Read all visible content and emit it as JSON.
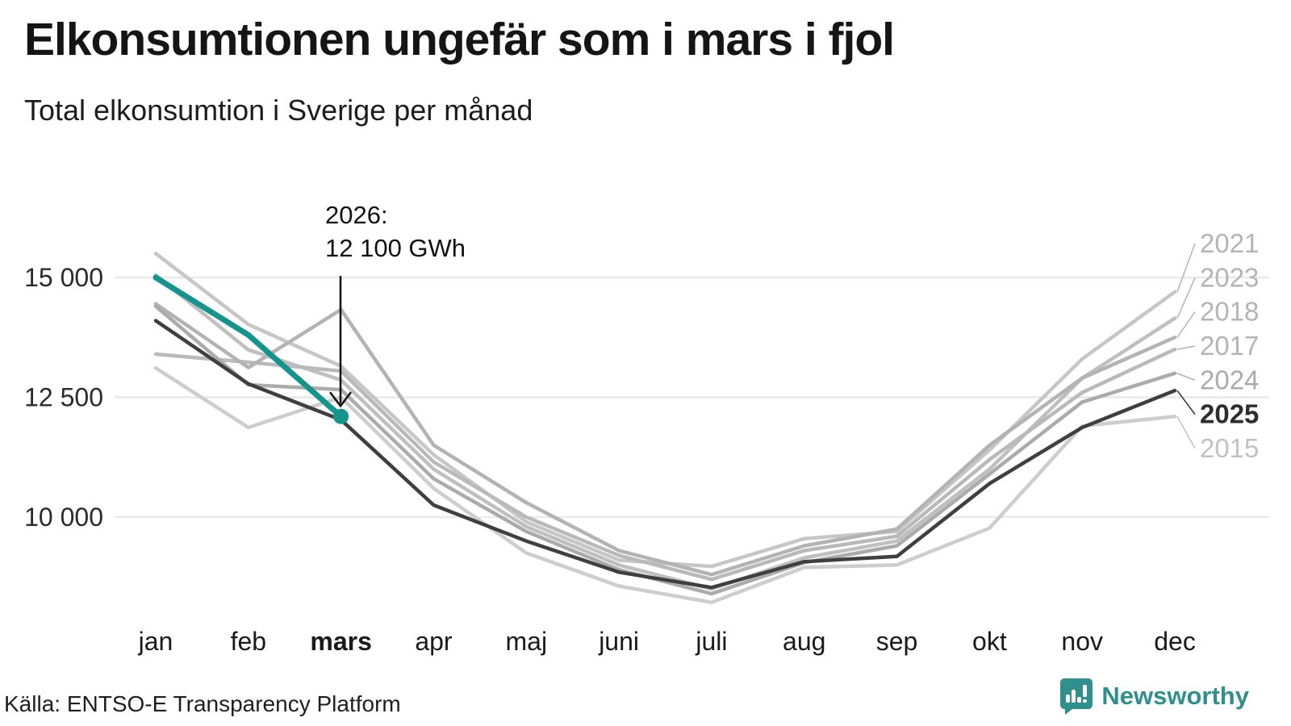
{
  "header": {
    "title": "Elkonsumtionen ungefär som i mars i fjol",
    "subtitle": "Total elkonsumtion i Sverige per månad"
  },
  "footer": {
    "source": "Källa: ENTSO-E Transparency Platform",
    "brand": "Newsworthy"
  },
  "colors": {
    "accent_teal": "#14948c",
    "dark_line": "#3f3f3f",
    "grid": "#e9e9ed",
    "logo_teal": "#2e8f8c",
    "axis_text": "#2b2b2b",
    "gray_label": "#b4b4b4"
  },
  "chart_data": {
    "type": "line",
    "unit": "GWh",
    "grid": "horizontal",
    "legend_position": "right-end-labels",
    "categories": [
      "jan",
      "feb",
      "mars",
      "apr",
      "maj",
      "juni",
      "juli",
      "aug",
      "sep",
      "okt",
      "nov",
      "dec"
    ],
    "bold_category": "mars",
    "y_ticks": [
      {
        "label": "15 000",
        "value": 15000
      },
      {
        "label": "12 500",
        "value": 12500
      },
      {
        "label": "10 000",
        "value": 10000
      }
    ],
    "ylim": [
      7700,
      15800
    ],
    "series": [
      {
        "name": "2021",
        "color": "#c6c6c6",
        "label_color": "#b4b4b4",
        "width": 4.5,
        "labeled": true,
        "values": [
          15500,
          14020,
          13150,
          11300,
          9900,
          9100,
          8970,
          9550,
          9700,
          11400,
          13300,
          14700
        ]
      },
      {
        "name": "2015",
        "color": "#cdcdcd",
        "label_color": "#c2c2c2",
        "width": 4.5,
        "labeled": true,
        "values": [
          13110,
          11870,
          12500,
          10600,
          9250,
          8560,
          8220,
          8950,
          9000,
          9770,
          11900,
          12100
        ]
      },
      {
        "name": "2023",
        "color": "#bfbfbf",
        "label_color": "#b4b4b4",
        "width": 4.5,
        "labeled": true,
        "values": [
          15050,
          13490,
          12860,
          11000,
          9800,
          9000,
          8500,
          9150,
          9500,
          11000,
          12900,
          14150
        ]
      },
      {
        "name": "2017",
        "color": "#b9b9b9",
        "label_color": "#b4b4b4",
        "width": 4.5,
        "labeled": true,
        "values": [
          13400,
          13230,
          13050,
          11150,
          10000,
          9200,
          8700,
          9300,
          9600,
          11200,
          12600,
          13500
        ]
      },
      {
        "name": "2018",
        "color": "#b3b3b3",
        "label_color": "#b4b4b4",
        "width": 4.5,
        "labeled": true,
        "values": [
          14450,
          13120,
          14330,
          11500,
          10300,
          9300,
          8800,
          9400,
          9750,
          11500,
          12900,
          13750
        ]
      },
      {
        "name": "2024",
        "color": "#ababab",
        "label_color": "#ababab",
        "width": 4.5,
        "labeled": true,
        "values": [
          14400,
          12760,
          12660,
          10800,
          9700,
          8900,
          8400,
          9050,
          9400,
          10900,
          12400,
          13000
        ]
      },
      {
        "name": "2025",
        "color": "#3f3f3f",
        "label_color": "#2d2d2d",
        "width": 4.5,
        "labeled": true,
        "values": [
          14100,
          12780,
          12030,
          10250,
          9500,
          8850,
          8530,
          9070,
          9180,
          10700,
          11870,
          12640
        ]
      },
      {
        "name": "2026",
        "color": "#14948c",
        "label_color": "#14948c",
        "width": 7,
        "labeled": false,
        "values": [
          15000,
          13800,
          12100,
          null,
          null,
          null,
          null,
          null,
          null,
          null,
          null,
          null
        ]
      }
    ],
    "annotation": {
      "line1": "2026:",
      "line2": "12 100 GWh",
      "series": "2026",
      "month_index": 2,
      "value": 12100
    }
  }
}
